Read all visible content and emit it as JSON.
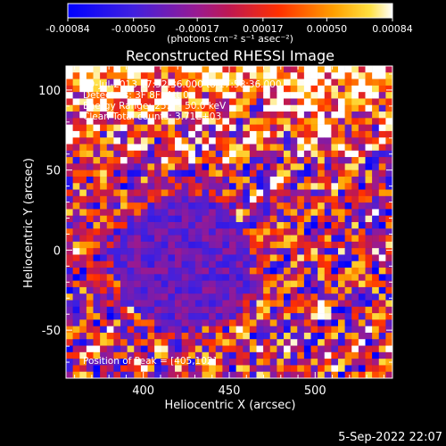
{
  "chart_data": {
    "type": "heatmap",
    "title": "Reconstructed RHESSI Image",
    "xlabel": "Heliocentric X (arcsec)",
    "ylabel": "Heliocentric Y (arcsec)",
    "xlim": [
      355,
      545
    ],
    "ylim": [
      -80,
      115
    ],
    "x_ticks": [
      400,
      450,
      500
    ],
    "y_ticks": [
      -50,
      0,
      50,
      100
    ],
    "grid_size": [
      48,
      48
    ],
    "colorbar": {
      "range": [
        -0.00084,
        0.00084
      ],
      "tick_labels": [
        "-0.00084",
        "-0.00050",
        "-0.00017",
        "0.00017",
        "0.00050",
        "0.00084"
      ],
      "tick_values": [
        -0.00084,
        -0.0005,
        -0.00017,
        0.00017,
        0.0005,
        0.00084
      ],
      "units_label": "(photons cm⁻² s⁻¹ asec⁻²)",
      "colormap": [
        "#0000ff",
        "#6030d0",
        "#b01880",
        "#ff3000",
        "#ffa000",
        "#ffffff"
      ]
    },
    "annotations": [
      "19-Jul-2013 17:52:36.000 to 17:58:36.000",
      "Detectors: 3F 8F, Att 0",
      "Energy Range: 25.0 - 50.0 keV",
      "Clean    Total counts: 3.71E+03"
    ],
    "peak_text": "Position of Peak = [405,102]",
    "peak": {
      "x": 405,
      "y": 102
    },
    "timestamp": "5-Sep-2022 22:07"
  }
}
